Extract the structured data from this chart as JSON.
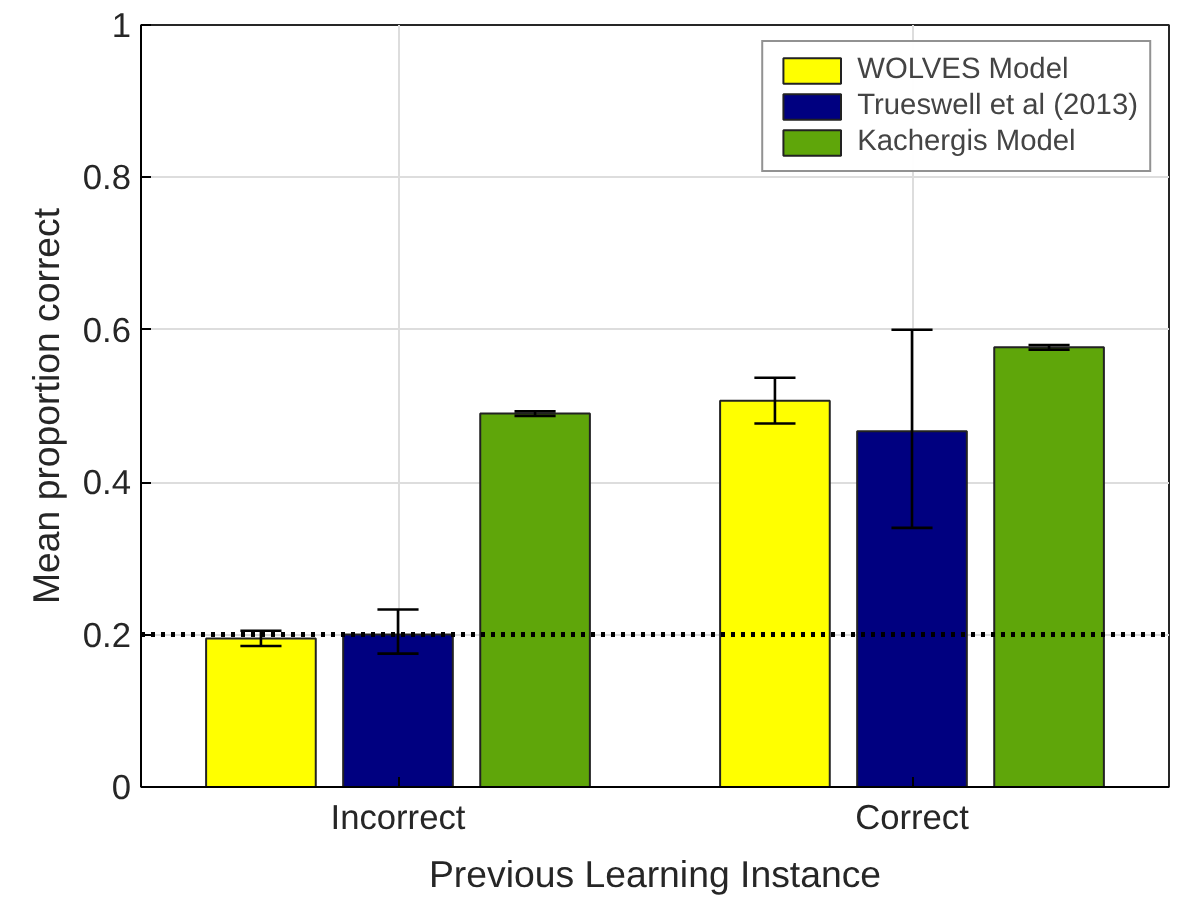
{
  "chart_data": {
    "type": "bar",
    "xlabel": "Previous Learning Instance",
    "ylabel": "Mean proportion correct",
    "categories": [
      "Incorrect",
      "Correct"
    ],
    "series": [
      {
        "name": "WOLVES Model",
        "color": "#ffff00",
        "values": [
          0.195,
          0.507
        ],
        "errors": [
          0.01,
          0.03
        ]
      },
      {
        "name": "Trueswell et al (2013)",
        "color": "#000080",
        "values": [
          0.2,
          0.467
        ],
        "errors": [
          [
            0.175,
            0.233
          ],
          [
            0.34,
            0.6
          ]
        ]
      },
      {
        "name": "Kachergis Model",
        "color": "#5fa60a",
        "values": [
          0.49,
          0.577
        ],
        "errors": [
          0.003,
          0.003
        ]
      }
    ],
    "ylim": [
      0,
      1
    ],
    "yticks": [
      0,
      0.2,
      0.4,
      0.6,
      0.8,
      1
    ],
    "grid": true,
    "legend": "top right",
    "ref_lines": [
      {
        "axis": "y",
        "value": 0.2,
        "color": "#000000",
        "line_style": "dotted"
      }
    ]
  }
}
